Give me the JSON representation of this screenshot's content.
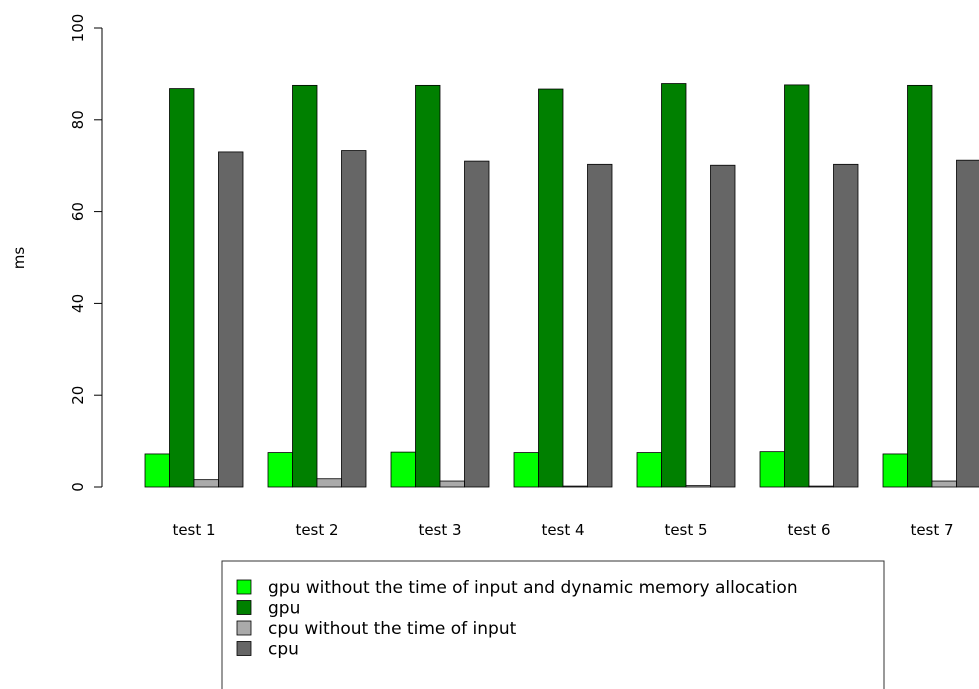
{
  "chart_data": {
    "type": "bar",
    "title": "",
    "xlabel": "",
    "ylabel": "ms",
    "ylim": [
      0,
      100
    ],
    "yticks": [
      0,
      20,
      40,
      60,
      80,
      100
    ],
    "grid": false,
    "legend_position": "bottom",
    "categories": [
      "test 1",
      "test 2",
      "test 3",
      "test 4",
      "test 5",
      "test 6",
      "test 7"
    ],
    "series": [
      {
        "name": "gpu without the time of input and dynamic memory allocation",
        "color": "#00ff00",
        "values": [
          7.2,
          7.5,
          7.6,
          7.5,
          7.5,
          7.7,
          7.2
        ]
      },
      {
        "name": "gpu",
        "color": "#008000",
        "values": [
          86.8,
          87.5,
          87.5,
          86.7,
          87.9,
          87.6,
          87.5
        ]
      },
      {
        "name": "cpu without the time of input",
        "color": "#aaaaaa",
        "values": [
          1.6,
          1.8,
          1.3,
          0.2,
          0.3,
          0.2,
          1.3
        ]
      },
      {
        "name": "cpu",
        "color": "#666666",
        "values": [
          73.0,
          73.3,
          71.0,
          70.3,
          70.1,
          70.3,
          71.2
        ]
      }
    ]
  }
}
